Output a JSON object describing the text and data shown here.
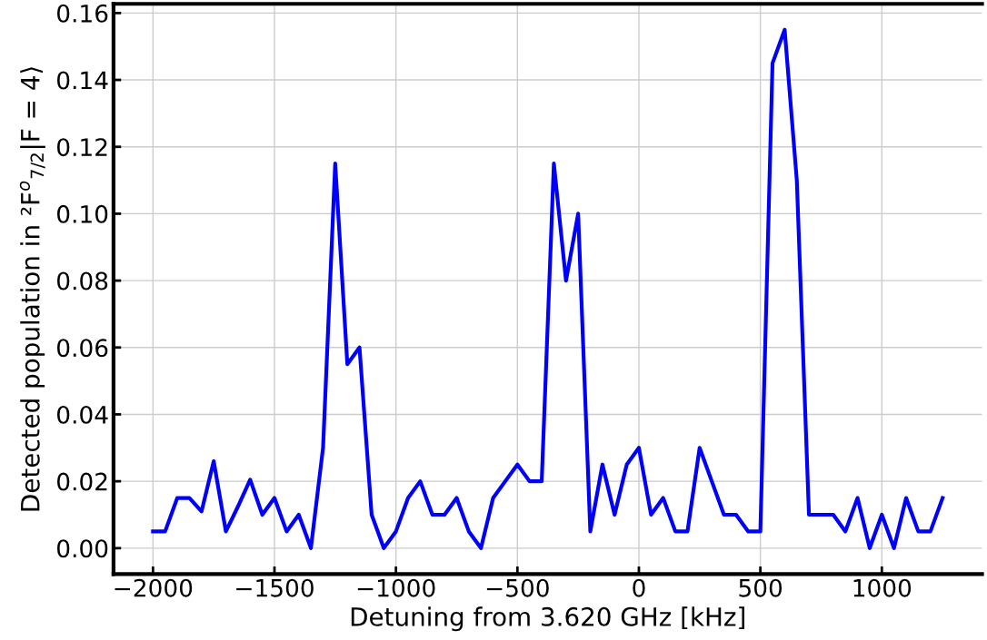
{
  "chart_data": {
    "type": "line",
    "xlabel": "Detuning from 3.620 GHz [kHz]",
    "ylabel": "Detected population in ²F$^{o}$$_{7/2}$|F = 4⟩",
    "x": [
      -2000,
      -1950,
      -1900,
      -1850,
      -1800,
      -1750,
      -1700,
      -1650,
      -1600,
      -1550,
      -1500,
      -1450,
      -1400,
      -1350,
      -1300,
      -1250,
      -1200,
      -1150,
      -1100,
      -1050,
      -1000,
      -950,
      -900,
      -850,
      -800,
      -750,
      -700,
      -650,
      -600,
      -550,
      -500,
      -450,
      -400,
      -350,
      -300,
      -250,
      -200,
      -150,
      -100,
      -50,
      0,
      50,
      100,
      150,
      200,
      250,
      300,
      350,
      400,
      450,
      500,
      550,
      600,
      650,
      700,
      750,
      800,
      850,
      900,
      950,
      1000,
      1050,
      1100,
      1150,
      1200,
      1250
    ],
    "series": [
      {
        "color": "#0000ff",
        "values": [
          0.005,
          0.005,
          0.015,
          0.015,
          0.011,
          0.026,
          0.005,
          0.0125,
          0.0205,
          0.01,
          0.015,
          0.005,
          0.01,
          0.0,
          0.03,
          0.115,
          0.055,
          0.06,
          0.01,
          0.0,
          0.005,
          0.015,
          0.02,
          0.01,
          0.01,
          0.015,
          0.005,
          0.0,
          0.015,
          0.02,
          0.025,
          0.02,
          0.02,
          0.115,
          0.08,
          0.1,
          0.005,
          0.025,
          0.01,
          0.025,
          0.03,
          0.01,
          0.015,
          0.005,
          0.005,
          0.03,
          0.02,
          0.01,
          0.01,
          0.005,
          0.005,
          0.145,
          0.155,
          0.11,
          0.01,
          0.01,
          0.01,
          0.005,
          0.015,
          0.0,
          0.01,
          0.0,
          0.015,
          0.005,
          0.005,
          0.015
        ]
      }
    ],
    "xlim": [
      -2162.5,
      1412.5
    ],
    "ylim": [
      -0.00775,
      0.16275
    ],
    "xticks": [
      {
        "value": -2000,
        "label": "−2000"
      },
      {
        "value": -1500,
        "label": "−1500"
      },
      {
        "value": -1000,
        "label": "−1000"
      },
      {
        "value": -500,
        "label": "−500"
      },
      0,
      500,
      1000
    ],
    "yticks": [
      {
        "value": 0,
        "label": "0.00"
      },
      {
        "value": 0.02,
        "label": "0.02"
      },
      {
        "value": 0.04,
        "label": "0.04"
      },
      {
        "value": 0.06,
        "label": "0.06"
      },
      {
        "value": 0.08,
        "label": "0.08"
      },
      {
        "value": 0.1,
        "label": "0.10"
      },
      {
        "value": 0.12,
        "label": "0.12"
      },
      {
        "value": 0.14,
        "label": "0.14"
      },
      {
        "value": 0.16,
        "label": "0.16"
      }
    ],
    "grid": true,
    "line_style": "solid"
  }
}
